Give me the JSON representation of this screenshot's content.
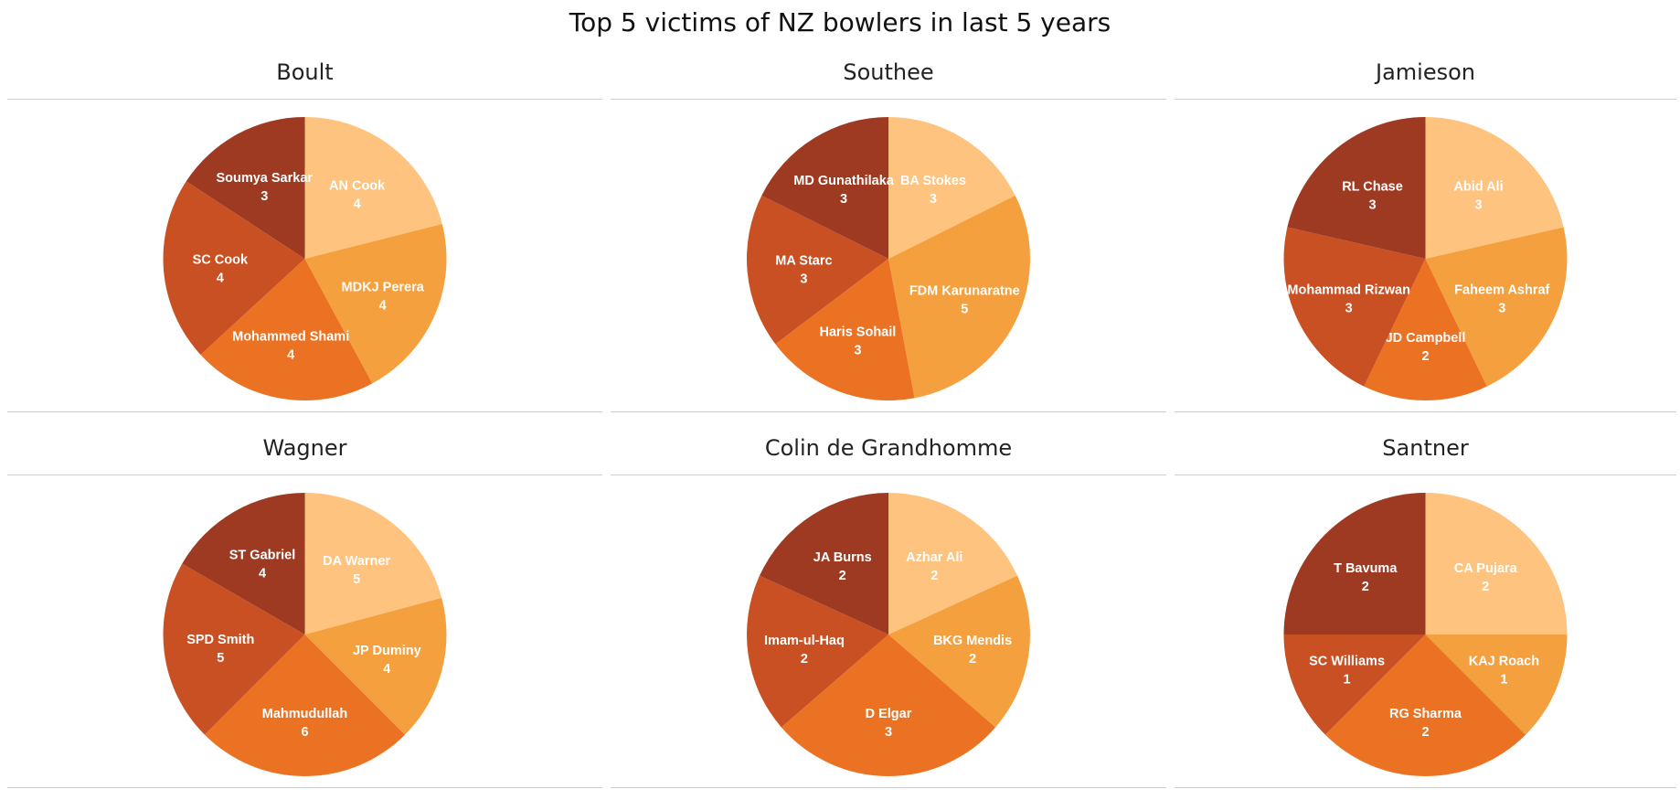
{
  "title": "Top 5 victims of NZ bowlers in last 5 years",
  "colors": [
    "#FEC37E",
    "#F4A03F",
    "#EC7223",
    "#C95022",
    "#9E3A22"
  ],
  "chart_data": [
    {
      "type": "pie",
      "title": "Boult",
      "labels": [
        "AN Cook",
        "MDKJ Perera",
        "Mohammed Shami",
        "SC Cook",
        "Soumya Sarkar"
      ],
      "values": [
        4,
        4,
        4,
        4,
        3
      ]
    },
    {
      "type": "pie",
      "title": "Southee",
      "labels": [
        "BA Stokes",
        "FDM Karunaratne",
        "Haris Sohail",
        "MA Starc",
        "MD Gunathilaka"
      ],
      "values": [
        3,
        5,
        3,
        3,
        3
      ]
    },
    {
      "type": "pie",
      "title": "Jamieson",
      "labels": [
        "Abid Ali",
        "Faheem Ashraf",
        "JD Campbell",
        "Mohammad Rizwan",
        "RL Chase"
      ],
      "values": [
        3,
        3,
        2,
        3,
        3
      ]
    },
    {
      "type": "pie",
      "title": "Wagner",
      "labels": [
        "DA Warner",
        "JP Duminy",
        "Mahmudullah",
        "SPD Smith",
        "ST Gabriel"
      ],
      "values": [
        5,
        4,
        6,
        5,
        4
      ]
    },
    {
      "type": "pie",
      "title": "Colin de Grandhomme",
      "labels": [
        "Azhar Ali",
        "BKG Mendis",
        "D Elgar",
        "Imam-ul-Haq",
        "JA Burns"
      ],
      "values": [
        2,
        2,
        3,
        2,
        2
      ]
    },
    {
      "type": "pie",
      "title": "Santner",
      "labels": [
        "CA Pujara",
        "KAJ Roach",
        "RG Sharma",
        "SC Williams",
        "T Bavuma"
      ],
      "values": [
        2,
        1,
        2,
        1,
        2
      ]
    }
  ]
}
